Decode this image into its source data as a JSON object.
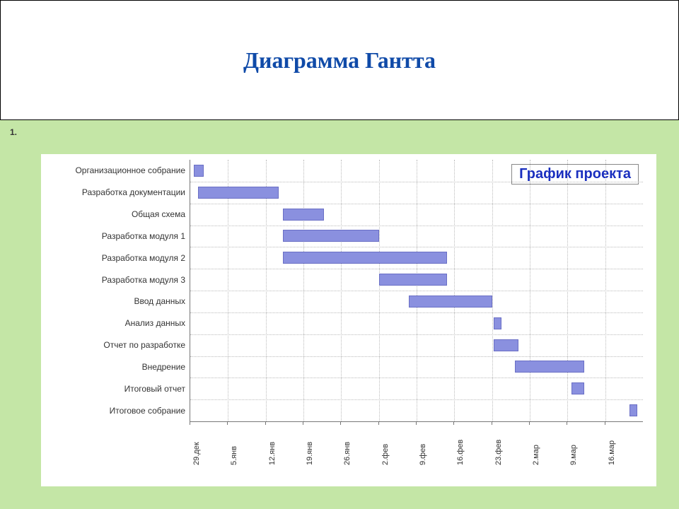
{
  "header": {
    "title": "Диаграмма Гантта",
    "title_color": "#0f4aa8",
    "title_fontsize": 32,
    "border_color": "#000000",
    "background": "#ffffff"
  },
  "page_background": "#c4e6a6",
  "list_marker": "1.",
  "chart": {
    "type": "gantt",
    "background": "#ffffff",
    "plot_background": "#ffffff",
    "grid_color": "#bbbbbb",
    "axis_color": "#777777",
    "bar_fill": "#8a90df",
    "bar_border": "#6a6fc5",
    "bar_height_ratio": 0.55,
    "legend": {
      "text": "График проекта",
      "color": "#1a2fbf",
      "fontsize": 20,
      "border_color": "#888888",
      "background": "#ffffff"
    },
    "task_label_fontsize": 12,
    "xaxis": {
      "labels": [
        "29.дек",
        "5.янв",
        "12.янв",
        "19.янв",
        "26.янв",
        "2.фев",
        "9.фев",
        "16.фев",
        "23.фев",
        "2.мар",
        "9.мар",
        "16.мар"
      ],
      "label_fontsize": 11,
      "label_rotation_deg": -90,
      "min": 0,
      "max": 12,
      "tick_step": 1
    },
    "tasks": [
      {
        "label": "Организационное собрание",
        "start": 0.1,
        "end": 0.35
      },
      {
        "label": "Разработка документации",
        "start": 0.2,
        "end": 2.35
      },
      {
        "label": "Общая схема",
        "start": 2.45,
        "end": 3.55
      },
      {
        "label": "Разработка модуля 1",
        "start": 2.45,
        "end": 5.0
      },
      {
        "label": "Разработка модуля 2",
        "start": 2.45,
        "end": 6.8
      },
      {
        "label": "Разработка модуля 3",
        "start": 5.0,
        "end": 6.8
      },
      {
        "label": "Ввод данных",
        "start": 5.8,
        "end": 8.0
      },
      {
        "label": "Анализ данных",
        "start": 8.05,
        "end": 8.25
      },
      {
        "label": "Отчет по разработке",
        "start": 8.05,
        "end": 8.7
      },
      {
        "label": "Внедрение",
        "start": 8.6,
        "end": 10.45
      },
      {
        "label": "Итоговый отчет",
        "start": 10.1,
        "end": 10.45
      },
      {
        "label": "Итоговое собрание",
        "start": 11.65,
        "end": 11.85
      }
    ]
  }
}
